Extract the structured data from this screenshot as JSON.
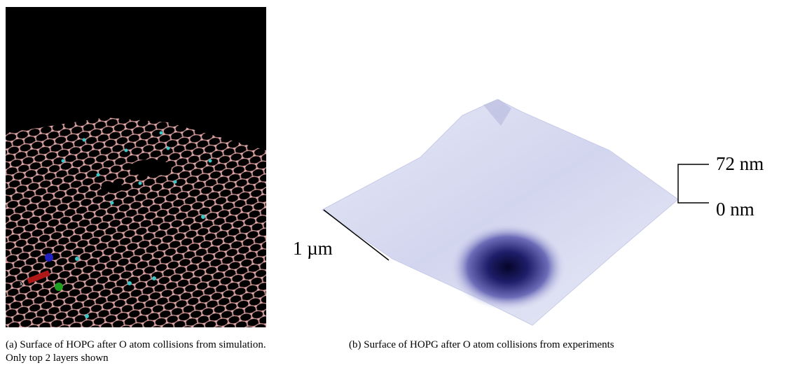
{
  "panel_a": {
    "axis_label": "x",
    "caption": "(a)  Surface of HOPG after O atom collisions from simulation. Only top 2 layers shown"
  },
  "panel_b": {
    "scale_top": "72 nm",
    "scale_bottom": "0 nm",
    "scale_length": "1 µm",
    "caption": "(b)  Surface of HOPG after O atom collisions from experiments"
  }
}
